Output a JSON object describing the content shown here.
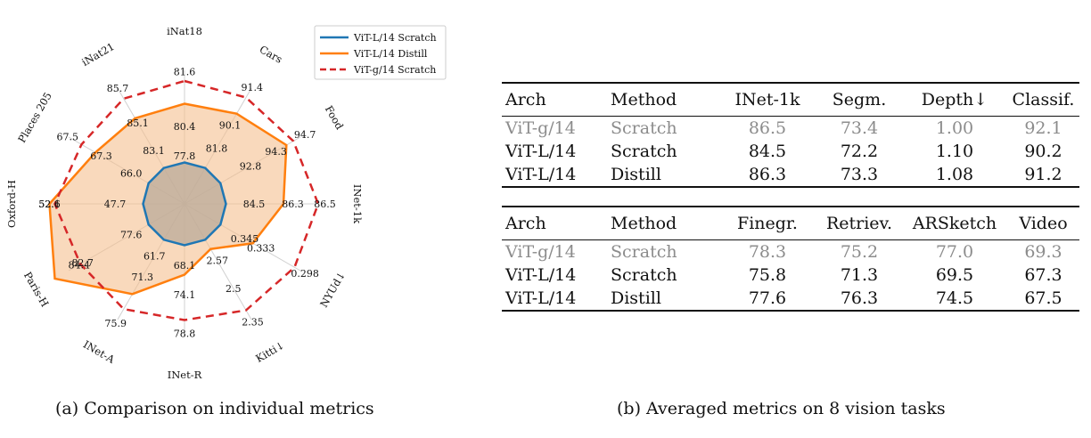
{
  "chart_data": [
    {
      "type": "radar",
      "axes": [
        "iNat18",
        "Cars",
        "Food",
        "INet-1k",
        "NYUd↓",
        "Kitti↓",
        "INet-R",
        "INet-A",
        "Paris-H",
        "Oxford-H",
        "Places 205",
        "iNat21"
      ],
      "series": [
        {
          "name": "ViT-L/14 Scratch",
          "color": "#1f77b4",
          "style": "solid",
          "labels": [
            "77.8",
            "81.8",
            "92.8",
            "84.5",
            "0.345",
            "2.57",
            "68.1",
            "61.7",
            "77.6",
            "47.7",
            "66.0",
            "83.1"
          ]
        },
        {
          "name": "ViT-L/14 Distill",
          "color": "#ff7f0e",
          "style": "solid",
          "labels": [
            "80.4",
            "90.1",
            "94.3",
            "86.3",
            "0.333",
            "2.5",
            "74.1",
            "71.3",
            "84.4",
            "52.1",
            "67.3",
            "85.1"
          ]
        },
        {
          "name": "ViT-g/14 Scratch",
          "color": "#d62728",
          "style": "dashed",
          "labels": [
            "81.6",
            "91.4",
            "94.7",
            "86.5",
            "0.298",
            "2.35",
            "78.8",
            "75.9",
            "82.7",
            "52.6",
            "67.5",
            "85.7"
          ]
        }
      ],
      "legend": "top-right",
      "fill_color": "#f5c08f"
    },
    {
      "type": "table",
      "tables": [
        {
          "columns": [
            "Arch",
            "Method",
            "INet-1k",
            "Segm.",
            "Depth↓",
            "Classif."
          ],
          "rows": [
            {
              "cells": [
                "ViT-g/14",
                "Scratch",
                "86.5",
                "73.4",
                "1.00",
                "92.1"
              ],
              "style": "gray"
            },
            {
              "cells": [
                "ViT-L/14",
                "Scratch",
                "84.5",
                "72.2",
                "1.10",
                "90.2"
              ],
              "style": "normal"
            },
            {
              "cells": [
                "ViT-L/14",
                "Distill",
                "86.3",
                "73.3",
                "1.08",
                "91.2"
              ],
              "style": "bold-values"
            }
          ]
        },
        {
          "columns": [
            "Arch",
            "Method",
            "Finegr.",
            "Retriev.",
            "ARSketch",
            "Video"
          ],
          "rows": [
            {
              "cells": [
                "ViT-g/14",
                "Scratch",
                "78.3",
                "75.2",
                "77.0",
                "69.3"
              ],
              "style": "gray"
            },
            {
              "cells": [
                "ViT-L/14",
                "Scratch",
                "75.8",
                "71.3",
                "69.5",
                "67.3"
              ],
              "style": "normal"
            },
            {
              "cells": [
                "ViT-L/14",
                "Distill",
                "77.6",
                "76.3",
                "74.5",
                "67.5"
              ],
              "style": "bold-values"
            }
          ]
        }
      ]
    }
  ],
  "captions": {
    "a": "(a) Comparison on individual metrics",
    "b": "(b) Averaged metrics on 8 vision tasks"
  }
}
